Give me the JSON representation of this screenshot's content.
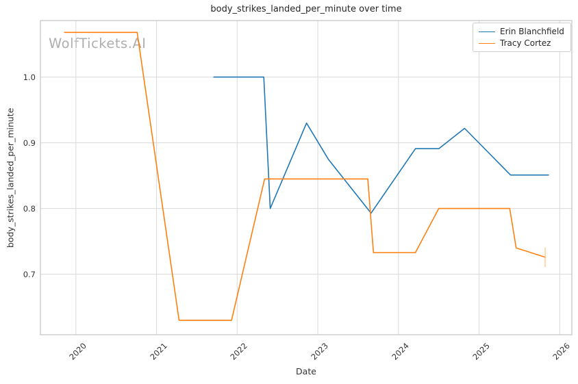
{
  "title": "body_strikes_landed_per_minute over time",
  "watermark": "WolfTickets.AI",
  "chart_data": {
    "type": "line",
    "title": "body_strikes_landed_per_minute over time",
    "xlabel": "Date",
    "ylabel": "body_strikes_landed_per_minute",
    "xlim": [
      2019.56,
      2026.15
    ],
    "ylim": [
      0.608,
      1.086
    ],
    "x_ticks": [
      2020,
      2021,
      2022,
      2023,
      2024,
      2025,
      2026
    ],
    "x_tick_labels": [
      "2020",
      "2021",
      "2022",
      "2023",
      "2024",
      "2025",
      "2026"
    ],
    "y_ticks": [
      0.7,
      0.8,
      0.9,
      1.0
    ],
    "y_tick_labels": [
      "0.7",
      "0.8",
      "0.9",
      "1.0"
    ],
    "grid": true,
    "legend_position": "upper right",
    "series": [
      {
        "name": "Erin Blanchfield",
        "color": "#1f77b4",
        "points": [
          [
            2021.71,
            1.0
          ],
          [
            2022.33,
            1.0
          ],
          [
            2022.41,
            0.8
          ],
          [
            2022.86,
            0.93
          ],
          [
            2023.13,
            0.875
          ],
          [
            2023.66,
            0.793
          ],
          [
            2024.21,
            0.891
          ],
          [
            2024.5,
            0.891
          ],
          [
            2024.82,
            0.922
          ],
          [
            2025.39,
            0.851
          ],
          [
            2025.86,
            0.851
          ]
        ]
      },
      {
        "name": "Tracy Cortez",
        "color": "#ff7f0e",
        "points": [
          [
            2019.86,
            1.068
          ],
          [
            2020.76,
            1.068
          ],
          [
            2021.28,
            0.63
          ],
          [
            2021.93,
            0.63
          ],
          [
            2022.34,
            0.845
          ],
          [
            2023.62,
            0.845
          ],
          [
            2023.69,
            0.733
          ],
          [
            2024.21,
            0.733
          ],
          [
            2024.5,
            0.8
          ],
          [
            2025.38,
            0.8
          ],
          [
            2025.46,
            0.74
          ],
          [
            2025.82,
            0.726
          ]
        ],
        "end_marker": {
          "x": 2025.82,
          "y_from": 0.711,
          "y_to": 0.741,
          "color": "#ffbb78",
          "opacity": 0.6
        }
      }
    ],
    "style": {
      "grid_color": "#d9d9d9",
      "spine_color": "#c3c3c3",
      "background": "#ffffff",
      "line_width": 1.6
    }
  }
}
